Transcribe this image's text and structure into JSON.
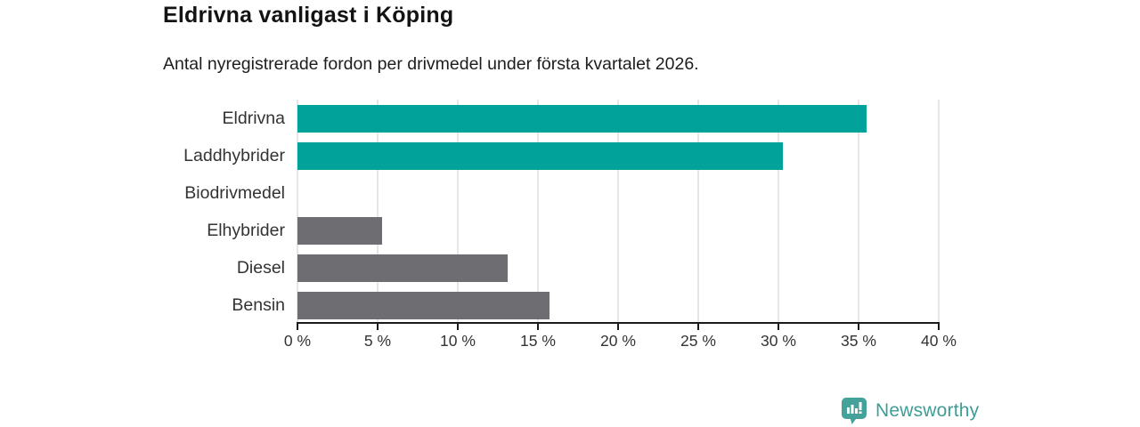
{
  "title": "Eldrivna vanligast i Köping",
  "subtitle": "Antal nyregistrerade fordon per drivmedel under första kvartalet 2026.",
  "colors": {
    "electric_bar": "#00a299",
    "other_bar": "#6e6d72",
    "gridline": "#e6e6e6",
    "axis": "#1a1a1a",
    "brand_teal": "#3e9d97"
  },
  "chart_data": {
    "type": "bar",
    "orientation": "horizontal",
    "title": "Eldrivna vanligast i Köping",
    "subtitle": "Antal nyregistrerade fordon per drivmedel under första kvartalet 2026.",
    "categories": [
      "Eldrivna",
      "Laddhybrider",
      "Biodrivmedel",
      "Elhybrider",
      "Diesel",
      "Bensin"
    ],
    "values": [
      35.5,
      30.3,
      0,
      5.3,
      13.1,
      15.7
    ],
    "unit": "%",
    "bar_colors": [
      "#00a299",
      "#00a299",
      "#6e6d72",
      "#6e6d72",
      "#6e6d72",
      "#6e6d72"
    ],
    "xlabel": "",
    "ylabel": "",
    "xlim": [
      0,
      40
    ],
    "x_tick_values": [
      0,
      5,
      10,
      15,
      20,
      25,
      30,
      35,
      40
    ],
    "x_tick_labels": [
      "0 %",
      "5 %",
      "10 %",
      "15 %",
      "20 %",
      "25 %",
      "30 %",
      "35 %",
      "40 %"
    ],
    "grid": true,
    "legend": false
  },
  "logo": {
    "text": "Newsworthy",
    "icon": "newsworthy-bar-chart-bubble-icon"
  }
}
